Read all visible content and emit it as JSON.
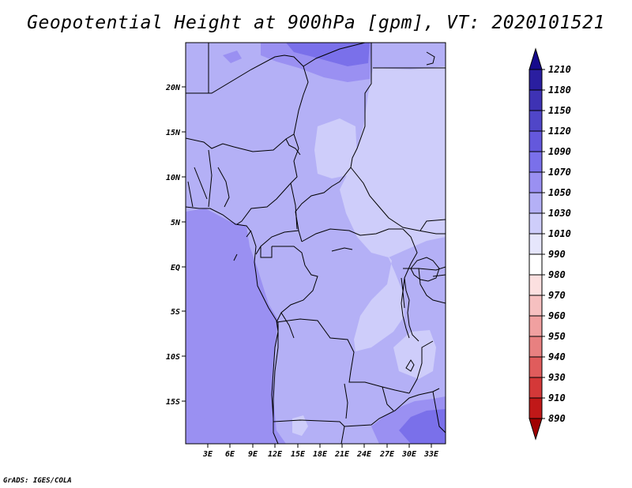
{
  "title": "Geopotential Height at 900hPa [gpm], VT: 2020101521",
  "credit": "GrADS: IGES/COLA",
  "lat_labels": [
    "20N",
    "15N",
    "10N",
    "5N",
    "EQ",
    "5S",
    "10S",
    "15S"
  ],
  "lon_labels": [
    "3E",
    "6E",
    "9E",
    "12E",
    "15E",
    "18E",
    "21E",
    "24E",
    "27E",
    "30E",
    "33E"
  ],
  "colorbar": {
    "levels": [
      "1210",
      "1180",
      "1150",
      "1120",
      "1090",
      "1070",
      "1050",
      "1030",
      "1010",
      "990",
      "980",
      "970",
      "960",
      "950",
      "940",
      "930",
      "910",
      "890"
    ],
    "colors": [
      "#160a8c",
      "#2a1ea0",
      "#3e32b4",
      "#5046c8",
      "#6458dc",
      "#7a70ea",
      "#9a90f2",
      "#b4b0f6",
      "#cecdfa",
      "#e6e6fc",
      "#ffffff",
      "#fce0e0",
      "#f6c0c0",
      "#f0a0a0",
      "#e88080",
      "#e05c5c",
      "#d43838",
      "#c01818",
      "#a00000"
    ]
  },
  "legend_colors": {
    "1050_1070": "#9a90f2",
    "1030_1050": "#b4b0f6",
    "1010_1030": "#cecdfa",
    "990_1010": "#e6e6fc"
  }
}
